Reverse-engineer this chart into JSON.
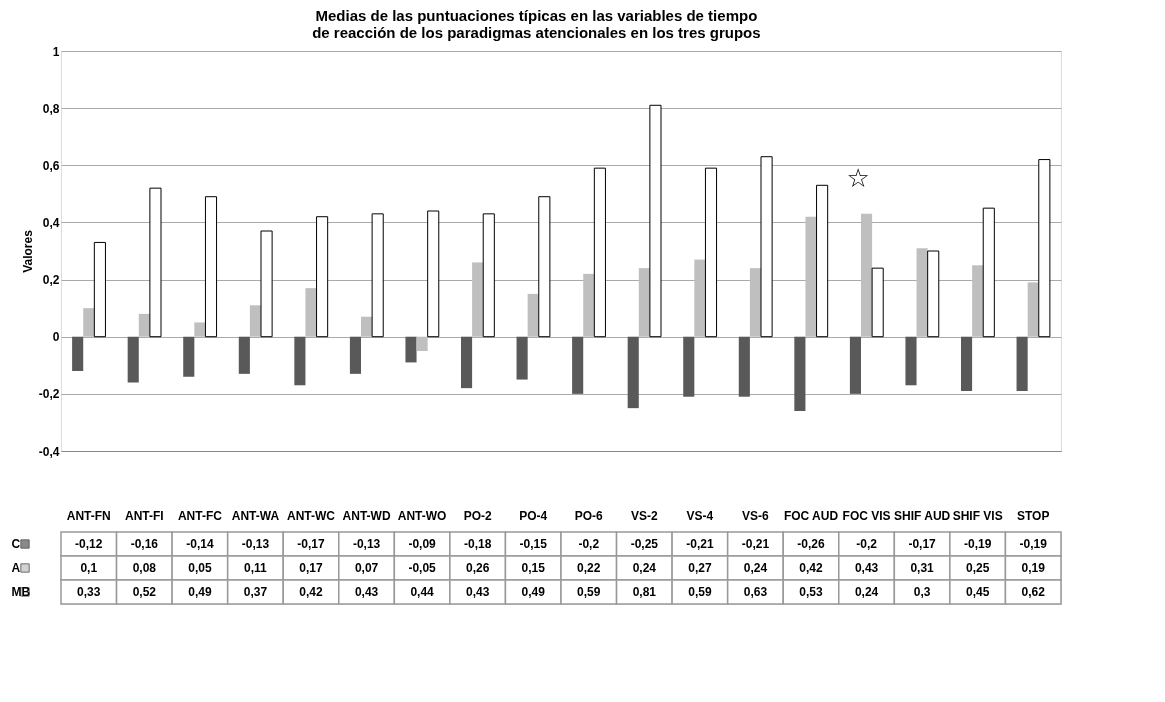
{
  "chart_data": {
    "type": "bar",
    "title": "Medias de las puntuaciones típicas en las variables de tiempo de reacción de los paradigmas atencionales en los tres grupos",
    "ylabel": "Valores",
    "categories": [
      "ANT-FN",
      "ANT-FI",
      "ANT-FC",
      "ANT-WA",
      "ANT-WC",
      "ANT-WD",
      "ANT-WO",
      "PO-2",
      "PO-4",
      "PO-6",
      "VS-2",
      "VS-4",
      "VS-6",
      "FOC AUD",
      "FOC VIS",
      "SHIF AUD",
      "SHIF VIS",
      "STOP"
    ],
    "series": [
      {
        "name": "C",
        "color": "#595959",
        "values": [
          -0.12,
          -0.16,
          -0.14,
          -0.13,
          -0.17,
          -0.13,
          -0.09,
          -0.18,
          -0.15,
          -0.2,
          -0.25,
          -0.21,
          -0.21,
          -0.26,
          -0.2,
          -0.17,
          -0.19,
          -0.19
        ],
        "value_labels": [
          "-0,12",
          "-0,16",
          "-0,14",
          "-0,13",
          "-0,17",
          "-0,13",
          "-0,09",
          "-0,18",
          "-0,15",
          "-0,2",
          "-0,25",
          "-0,21",
          "-0,21",
          "-0,26",
          "-0,2",
          "-0,17",
          "-0,19",
          "-0,19"
        ]
      },
      {
        "name": "A",
        "color": "#bfbfbf",
        "values": [
          0.1,
          0.08,
          0.05,
          0.11,
          0.17,
          0.07,
          -0.05,
          0.26,
          0.15,
          0.22,
          0.24,
          0.27,
          0.24,
          0.42,
          0.43,
          0.31,
          0.25,
          0.19
        ],
        "value_labels": [
          "0,1",
          "0,08",
          "0,05",
          "0,11",
          "0,17",
          "0,07",
          "-0,05",
          "0,26",
          "0,15",
          "0,22",
          "0,24",
          "0,27",
          "0,24",
          "0,42",
          "0,43",
          "0,31",
          "0,25",
          "0,19"
        ]
      },
      {
        "name": "MB",
        "color": "#ffffff",
        "values": [
          0.33,
          0.52,
          0.49,
          0.37,
          0.42,
          0.43,
          0.44,
          0.43,
          0.49,
          0.59,
          0.81,
          0.59,
          0.63,
          0.53,
          0.24,
          0.3,
          0.45,
          0.62
        ],
        "value_labels": [
          "0,33",
          "0,52",
          "0,49",
          "0,37",
          "0,42",
          "0,43",
          "0,44",
          "0,43",
          "0,49",
          "0,59",
          "0,81",
          "0,59",
          "0,63",
          "0,53",
          "0,24",
          "0,3",
          "0,45",
          "0,62"
        ]
      }
    ],
    "ylim": [
      -0.4,
      1
    ],
    "yticks": [
      {
        "value": -0.4,
        "label": "-0,4"
      },
      {
        "value": -0.2,
        "label": "-0,2"
      },
      0,
      {
        "value": 0.2,
        "label": "0,2"
      },
      {
        "value": 0.4,
        "label": "0,4"
      },
      {
        "value": 0.6,
        "label": "0,6"
      },
      {
        "value": 0.8,
        "label": "0,8"
      },
      1
    ],
    "grid": "y",
    "legend": "bottom",
    "annotations": [
      "☆"
    ]
  }
}
